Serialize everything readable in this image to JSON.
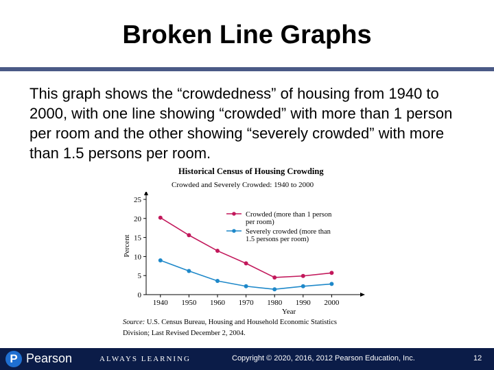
{
  "slide": {
    "title": "Broken Line Graphs",
    "body": "This graph shows the “crowdedness” of housing from 1940 to 2000, with one line showing “crowded” with more than 1 person per room and the other showing “severely crowded” with more than 1.5 persons per room."
  },
  "chart_data": {
    "type": "line",
    "title": "Historical Census of Housing Crowding",
    "subtitle": "Crowded and Severely Crowded: 1940 to 2000",
    "xlabel": "Year",
    "ylabel": "Percent",
    "x": [
      1940,
      1950,
      1960,
      1970,
      1980,
      1990,
      2000
    ],
    "xlim": [
      1935,
      2010
    ],
    "ylim": [
      0,
      25
    ],
    "yticks": [
      0,
      5,
      10,
      15,
      20,
      25
    ],
    "grid": false,
    "legend_position": "top-right",
    "series": [
      {
        "name": "Crowded (more than 1 person per room)",
        "legend_lines": [
          "Crowded (more than 1 person",
          "per room)"
        ],
        "color": "#c2185b",
        "values": [
          20.2,
          15.6,
          11.5,
          8.2,
          4.5,
          4.9,
          5.7
        ]
      },
      {
        "name": "Severely crowded (more than 1.5 persons per room)",
        "legend_lines": [
          "Severely crowded (more than",
          "1.5 persons per room)"
        ],
        "color": "#1e88c9",
        "values": [
          9.0,
          6.2,
          3.6,
          2.2,
          1.4,
          2.2,
          2.8
        ]
      }
    ],
    "source_label": "Source:",
    "source_text": "U.S. Census Bureau, Housing and Household Economic Statistics Division; Last Revised December 2, 2004."
  },
  "footer": {
    "logo_letter": "P",
    "logo_text": "Pearson",
    "tagline": "ALWAYS LEARNING",
    "copyright": "Copyright © 2020, 2016, 2012 Pearson Education, Inc.",
    "page_number": "12",
    "color": "#0b1c48"
  }
}
